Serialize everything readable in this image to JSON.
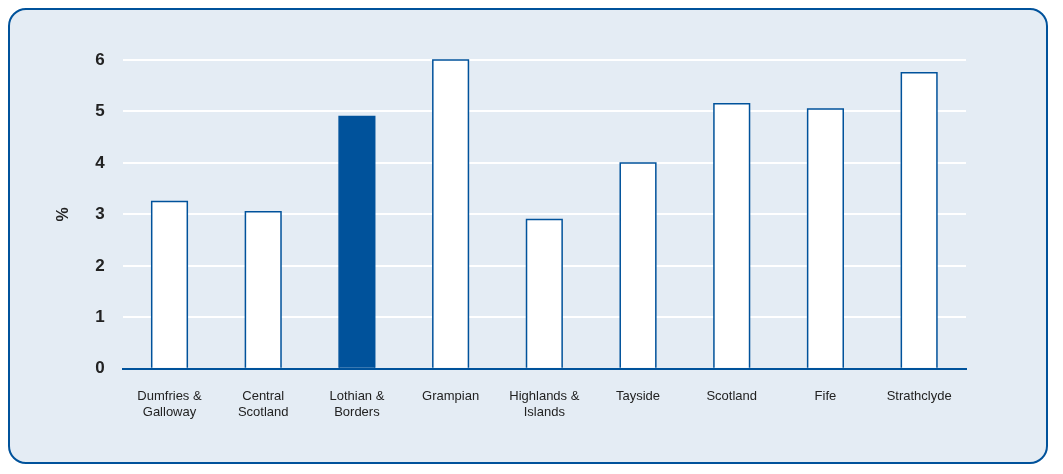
{
  "chart_data": {
    "type": "bar",
    "ylabel": "%",
    "categories": [
      "Dumfries & Galloway",
      "Central Scotland",
      "Lothian & Borders",
      "Grampian",
      "Highlands & Islands",
      "Tayside",
      "Scotland",
      "Fife",
      "Strathclyde"
    ],
    "values": [
      3.25,
      3.05,
      4.9,
      6.0,
      2.9,
      4.0,
      5.15,
      5.05,
      5.75
    ],
    "colors": [
      "#ffffff",
      "#ffffff",
      "#00529b",
      "#ffffff",
      "#ffffff",
      "#ffffff",
      "#ffffff",
      "#ffffff",
      "#ffffff"
    ],
    "color": "#00529b",
    "ylim": [
      0,
      6
    ],
    "yticks": [
      0,
      1,
      2,
      3,
      4,
      5,
      6
    ],
    "grid": "y",
    "legend": false
  }
}
